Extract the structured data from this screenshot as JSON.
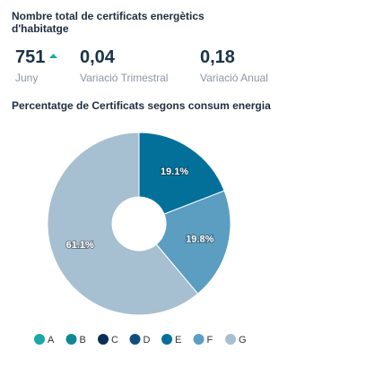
{
  "header": {
    "title": "Nombre total de certificats energètics d'habitatge"
  },
  "kpis": [
    {
      "value": "751",
      "label": "Juny"
    },
    {
      "value": "0,04",
      "label": "Variació Trimestral"
    },
    {
      "value": "0,18",
      "label": "Variació Anual"
    }
  ],
  "chart_data": {
    "type": "pie",
    "title": "Percentatge de Certificats segons consum energia",
    "categories": [
      "A",
      "B",
      "C",
      "D",
      "E",
      "F",
      "G"
    ],
    "values": [
      0,
      0,
      0,
      0,
      19.1,
      19.8,
      61.1
    ],
    "value_labels": [
      null,
      null,
      null,
      null,
      "19.1%",
      "19.8%",
      "61.1%"
    ],
    "colors": [
      "#1ba7a6",
      "#0e8892",
      "#0b2d5a",
      "#0f4f80",
      "#03709a",
      "#5b9ec1",
      "#a6bfd1"
    ],
    "legend": "bottom"
  }
}
